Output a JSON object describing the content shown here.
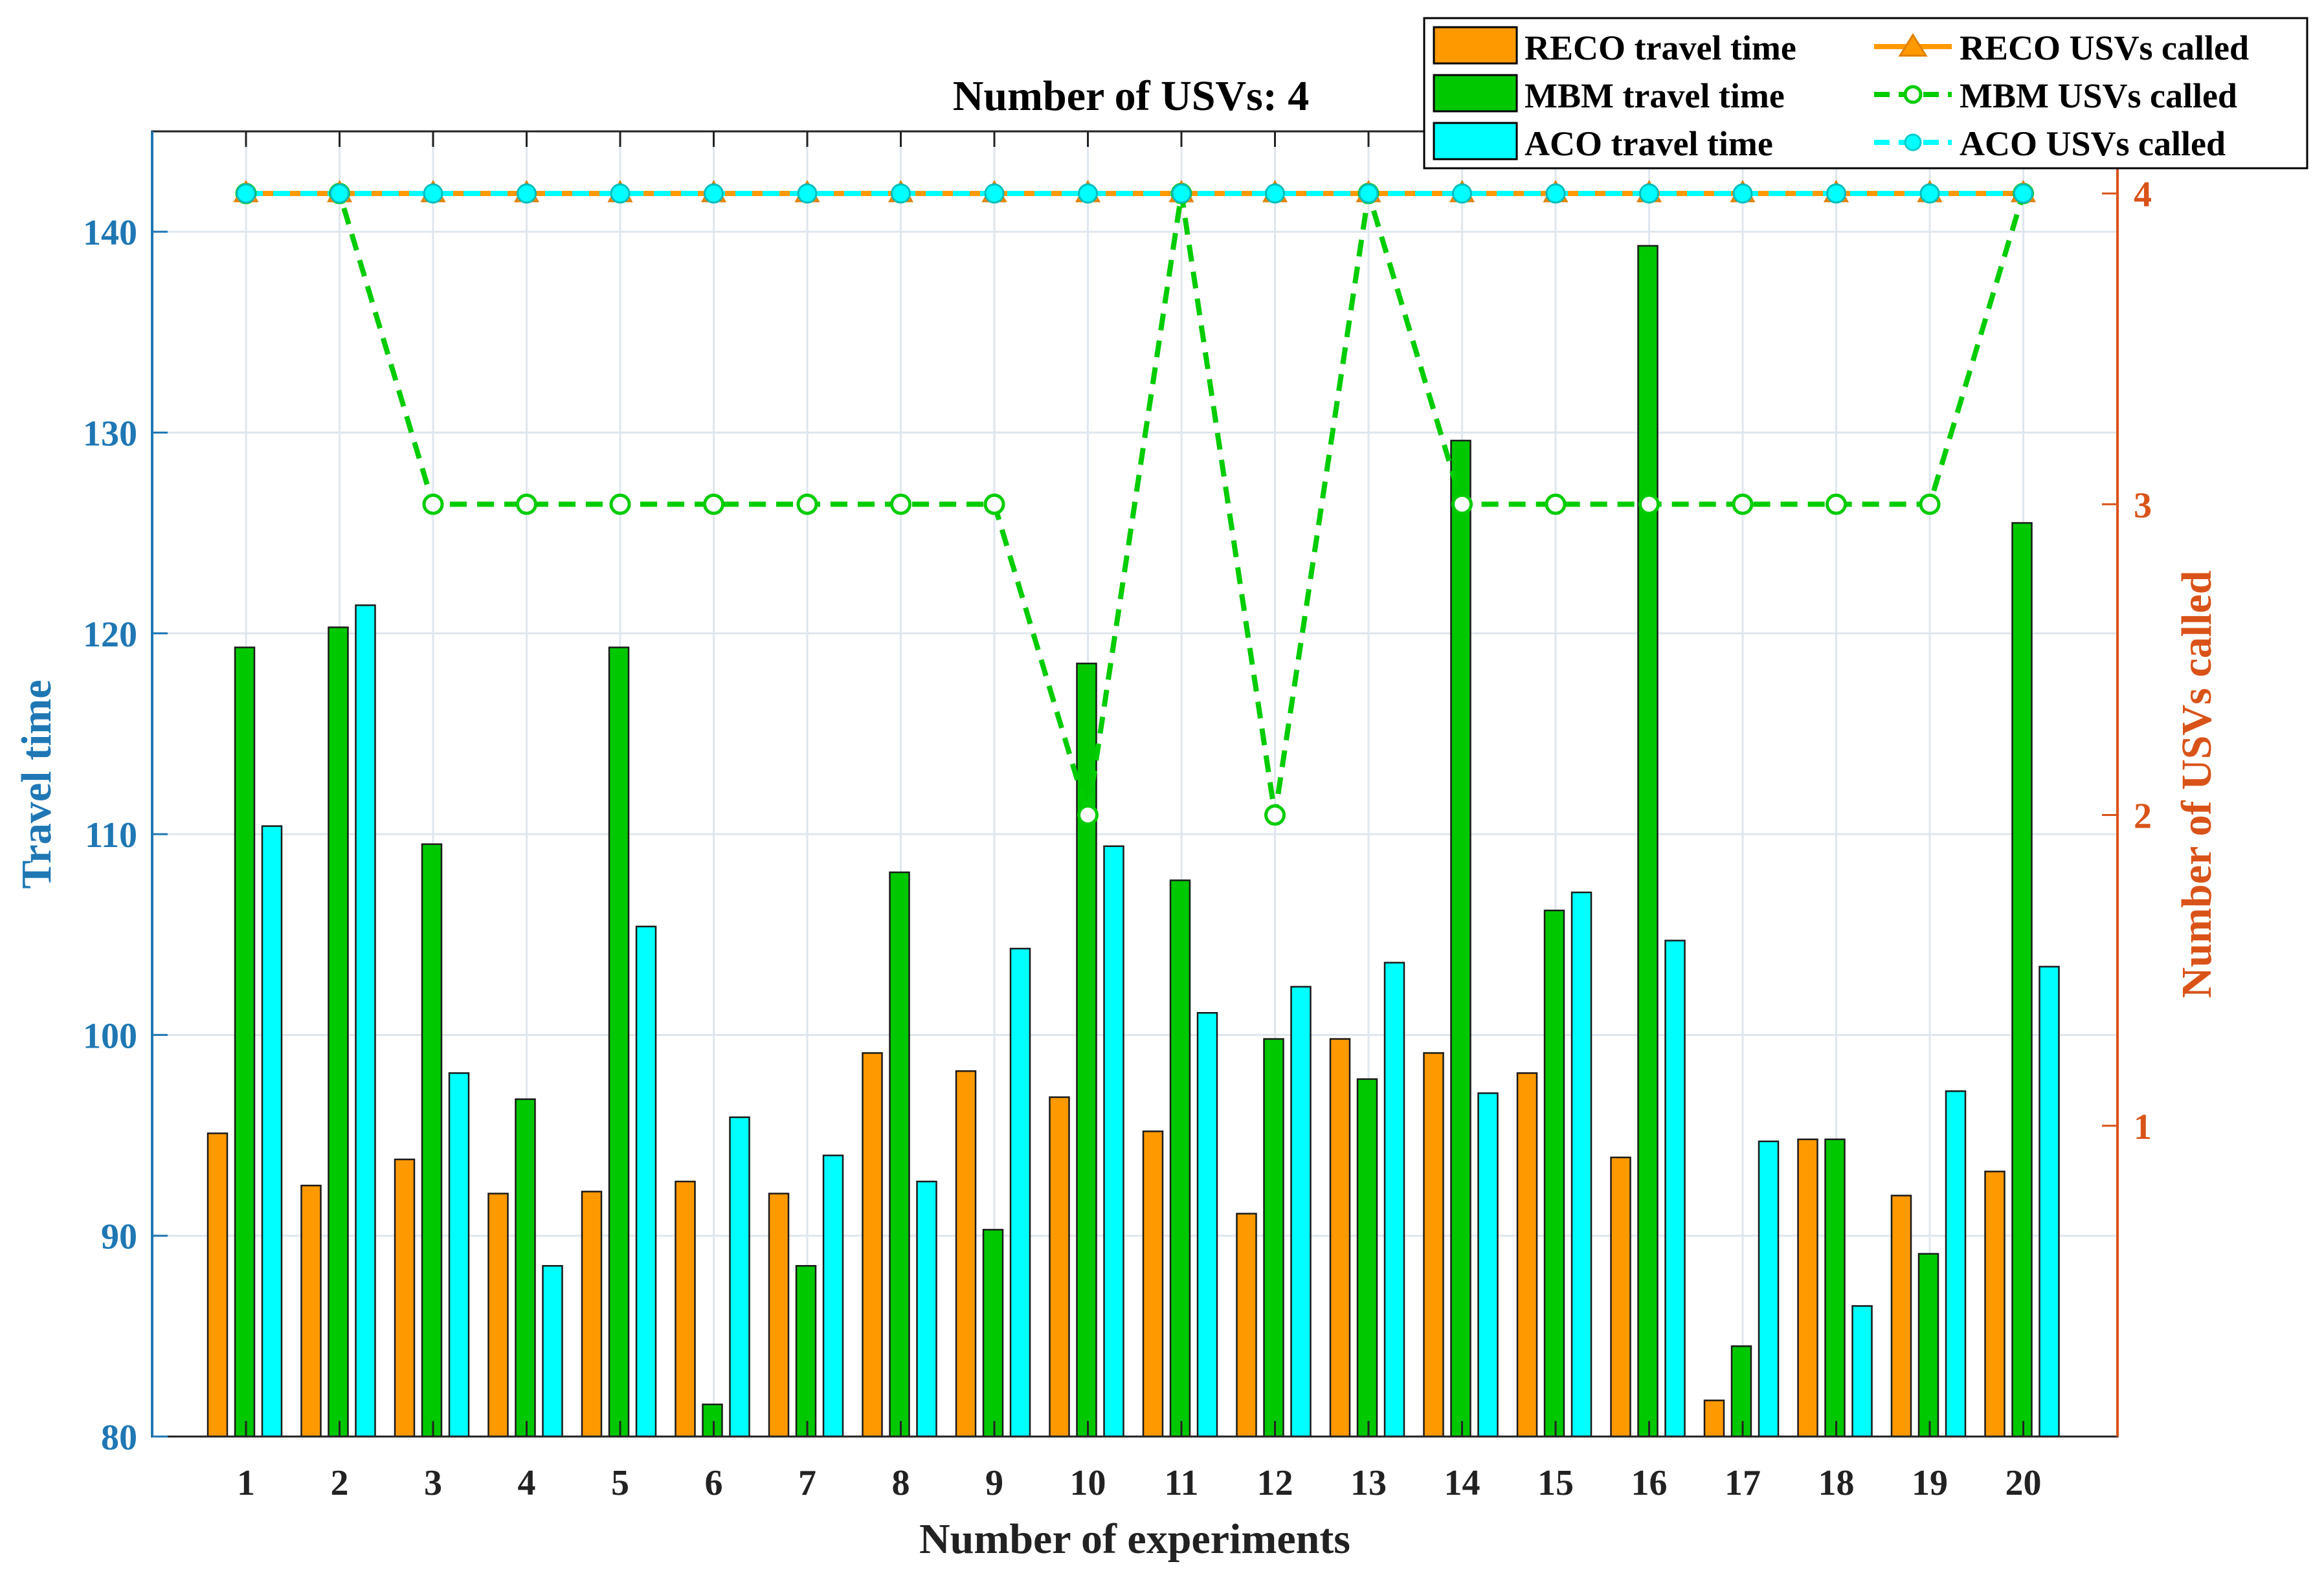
{
  "chart_data": {
    "type": "bar",
    "title": "Number of USVs: 4",
    "xlabel": "Number of experiments",
    "ylabel": "Travel time",
    "ylabel_right": "Number of USVs called",
    "categories": [
      "1",
      "2",
      "3",
      "4",
      "5",
      "6",
      "7",
      "8",
      "9",
      "10",
      "11",
      "12",
      "13",
      "14",
      "15",
      "16",
      "17",
      "18",
      "19",
      "20"
    ],
    "ylim": [
      80,
      145
    ],
    "yticks": [
      80,
      90,
      100,
      110,
      120,
      130,
      140
    ],
    "ylim_right": [
      0,
      4.2
    ],
    "yticks_right": [
      1,
      2,
      3,
      4
    ],
    "grid": true,
    "legend_position": "top-right",
    "bar_series": [
      {
        "name": "RECO travel time",
        "color": "#ff9900",
        "values": [
          95.1,
          92.5,
          93.8,
          92.1,
          92.2,
          92.7,
          92.1,
          99.1,
          98.2,
          96.9,
          95.2,
          91.1,
          99.8,
          99.1,
          98.1,
          93.9,
          81.8,
          94.8,
          92.0,
          93.2
        ]
      },
      {
        "name": "MBM travel time",
        "color": "#00c800",
        "values": [
          119.3,
          120.3,
          109.5,
          96.8,
          119.3,
          81.6,
          88.5,
          108.1,
          90.3,
          118.5,
          107.7,
          99.8,
          97.8,
          129.6,
          106.2,
          139.3,
          84.5,
          94.8,
          89.1,
          125.5
        ]
      },
      {
        "name": "ACO travel time",
        "color": "#00ffff",
        "values": [
          110.4,
          121.4,
          98.1,
          88.5,
          105.4,
          95.9,
          94.0,
          92.7,
          104.3,
          109.4,
          101.1,
          102.4,
          103.6,
          97.1,
          107.1,
          104.7,
          94.7,
          86.5,
          97.2,
          103.4
        ]
      }
    ],
    "line_series": [
      {
        "name": "RECO USVs called",
        "color": "#ff9900",
        "marker": "triangle",
        "dash": "solid",
        "values": [
          4,
          4,
          4,
          4,
          4,
          4,
          4,
          4,
          4,
          4,
          4,
          4,
          4,
          4,
          4,
          4,
          4,
          4,
          4,
          4
        ]
      },
      {
        "name": "MBM USVs called",
        "color": "#00cc00",
        "marker": "circle-open",
        "dash": "dashed",
        "values": [
          4,
          4,
          3,
          3,
          3,
          3,
          3,
          3,
          3,
          2,
          4,
          2,
          4,
          3,
          3,
          3,
          3,
          3,
          3,
          4
        ]
      },
      {
        "name": "ACO USVs called",
        "color": "#00ffff",
        "marker": "circle-filled",
        "dash": "dashed",
        "values": [
          4,
          4,
          4,
          4,
          4,
          4,
          4,
          4,
          4,
          4,
          4,
          4,
          4,
          4,
          4,
          4,
          4,
          4,
          4,
          4
        ]
      }
    ]
  },
  "colors": {
    "left_axis": "#1f77b4",
    "right_axis": "#d95319",
    "grid": "#dfe6ee"
  }
}
